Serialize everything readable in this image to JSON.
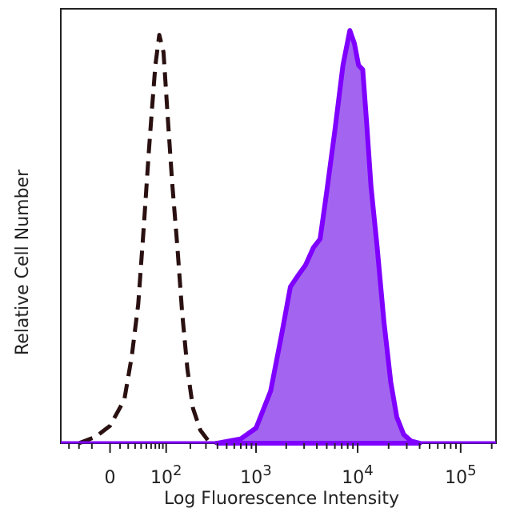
{
  "chart_data": {
    "type": "area",
    "title": "",
    "xlabel": "Log Fluorescence Intensity",
    "ylabel": "Relative Cell Number",
    "x_scale": "logicle",
    "x_ticks": [
      {
        "value": 0,
        "base": "0",
        "exp": ""
      },
      {
        "value": 100,
        "base": "10",
        "exp": "2"
      },
      {
        "value": 1000,
        "base": "10",
        "exp": "3"
      },
      {
        "value": 10000,
        "base": "10",
        "exp": "4"
      },
      {
        "value": 100000,
        "base": "10",
        "exp": "5"
      }
    ],
    "xlim": [
      -80,
      220000
    ],
    "ylim": [
      0,
      100
    ],
    "y_ticks": [],
    "grid": false,
    "legend": "none",
    "series": [
      {
        "style": "dashed-outline",
        "color": "#2a1010",
        "fill": "none",
        "points": [
          [
            -40,
            0
          ],
          [
            -15,
            1.5
          ],
          [
            0,
            4
          ],
          [
            15,
            10
          ],
          [
            25,
            20
          ],
          [
            35,
            32
          ],
          [
            45,
            50
          ],
          [
            55,
            67
          ],
          [
            62,
            77
          ],
          [
            70,
            87
          ],
          [
            80,
            94
          ],
          [
            92,
            90
          ],
          [
            105,
            75
          ],
          [
            120,
            60
          ],
          [
            140,
            45
          ],
          [
            160,
            30
          ],
          [
            185,
            17
          ],
          [
            215,
            8
          ],
          [
            260,
            3
          ],
          [
            320,
            0.5
          ],
          [
            400,
            0
          ]
        ]
      },
      {
        "style": "filled",
        "color": "#7f00ff",
        "fill": "#a365f0",
        "points": [
          [
            400,
            0
          ],
          [
            700,
            1
          ],
          [
            1000,
            3.5
          ],
          [
            1400,
            12
          ],
          [
            1800,
            25
          ],
          [
            2200,
            36
          ],
          [
            2600,
            38.5
          ],
          [
            3100,
            41
          ],
          [
            3700,
            45
          ],
          [
            4300,
            47
          ],
          [
            5000,
            58
          ],
          [
            6000,
            72
          ],
          [
            7200,
            87
          ],
          [
            8400,
            95
          ],
          [
            9300,
            92
          ],
          [
            10200,
            87
          ],
          [
            11200,
            86
          ],
          [
            12200,
            74
          ],
          [
            13500,
            59
          ],
          [
            15500,
            45
          ],
          [
            18000,
            28
          ],
          [
            21000,
            14
          ],
          [
            24000,
            6
          ],
          [
            28000,
            2
          ],
          [
            33000,
            0.5
          ],
          [
            40000,
            0
          ]
        ]
      }
    ]
  }
}
